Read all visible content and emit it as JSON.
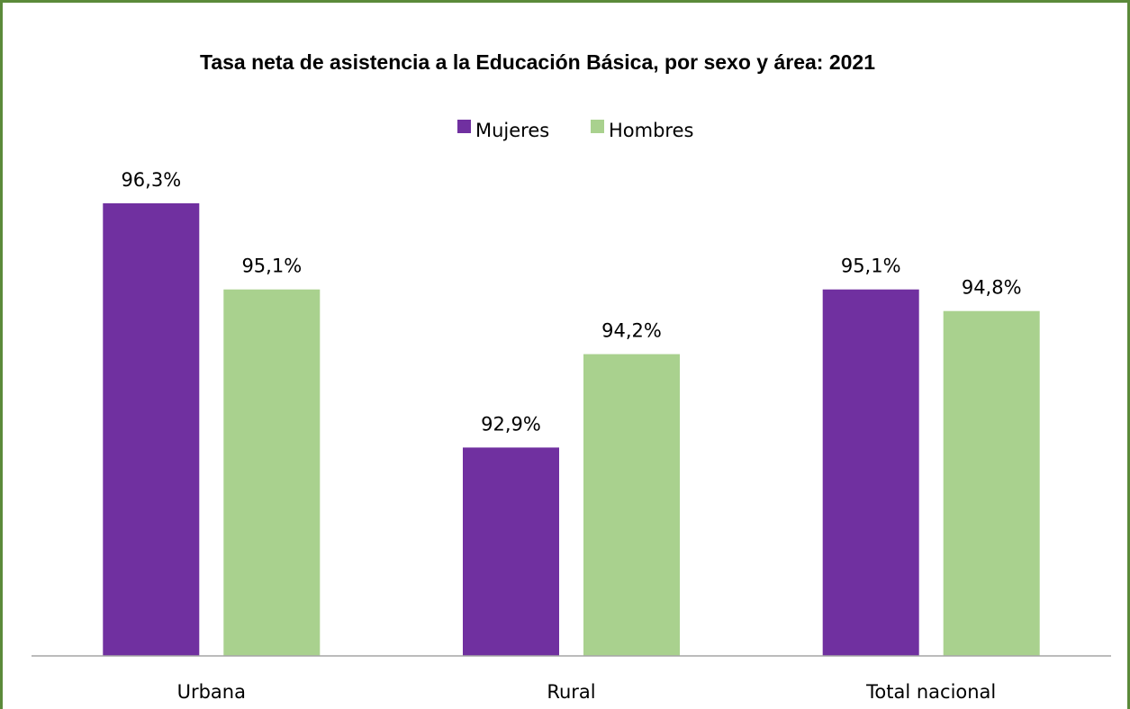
{
  "chart_data": {
    "type": "bar",
    "title": "Tasa neta de asistencia a la Educación Básica, por sexo y área: 2021",
    "categories": [
      "Urbana",
      "Rural",
      "Total nacional"
    ],
    "series": [
      {
        "name": "Mujeres",
        "color": "#7030a0",
        "values": [
          96.3,
          92.9,
          95.1
        ],
        "labels": [
          "96,3%",
          "92,9%",
          "95,1%"
        ]
      },
      {
        "name": "Hombres",
        "color": "#a9d18e",
        "values": [
          95.1,
          94.2,
          94.8
        ],
        "labels": [
          "95,1%",
          "94,2%",
          "94,8%"
        ]
      }
    ],
    "xlabel": "",
    "ylabel": "",
    "ylim": [
      90,
      97
    ],
    "axis_visible": false,
    "grid": false,
    "legend_position": "top"
  },
  "colors": {
    "frame_border": "#5b8a3a",
    "axis_line": "#a6a6a6"
  }
}
